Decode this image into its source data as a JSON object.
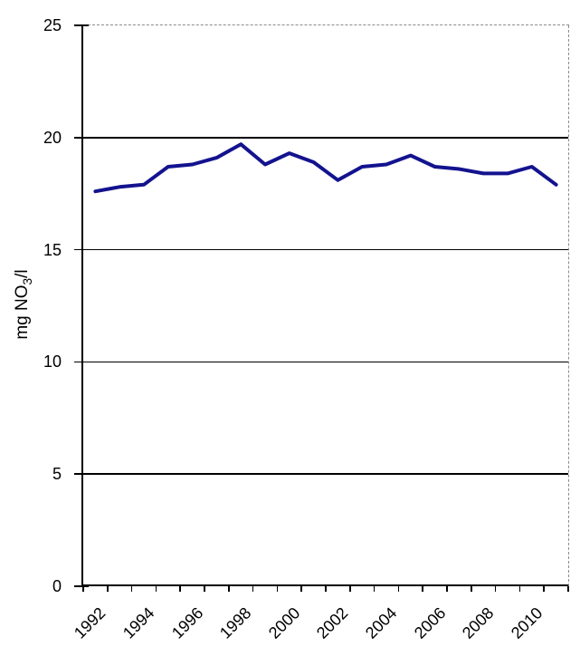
{
  "chart_data": {
    "type": "line",
    "title": "",
    "x": [
      1992,
      1993,
      1994,
      1995,
      1996,
      1997,
      1998,
      1999,
      2000,
      2001,
      2002,
      2003,
      2004,
      2005,
      2006,
      2007,
      2008,
      2009,
      2010,
      2011
    ],
    "values": [
      17.6,
      17.8,
      17.9,
      18.7,
      18.8,
      19.1,
      19.7,
      18.8,
      19.3,
      18.9,
      18.1,
      18.7,
      18.8,
      19.2,
      18.7,
      18.6,
      18.4,
      18.4,
      18.7,
      17.9
    ],
    "series_name": "",
    "xlabel": "",
    "ylabel": "mg NO₃/l",
    "ylabel_parts": {
      "pre": "mg NO",
      "sub": "3",
      "post": "/l"
    },
    "ylim": [
      0,
      25
    ],
    "y_ticks": [
      0,
      5,
      10,
      15,
      20,
      25
    ],
    "y_tick_labels": [
      "0",
      "5",
      "10",
      "15",
      "20",
      "25"
    ],
    "x_tick_labels": [
      "1992",
      "1994",
      "1996",
      "1998",
      "2000",
      "2002",
      "2004",
      "2006",
      "2008",
      "2010"
    ],
    "x_label_step": 2,
    "grid": "horizontal",
    "legend": "none",
    "line_color": "#13138f",
    "axis_color": "#000000",
    "plot_border_color": "#8c8c8c",
    "background": "#ffffff"
  }
}
